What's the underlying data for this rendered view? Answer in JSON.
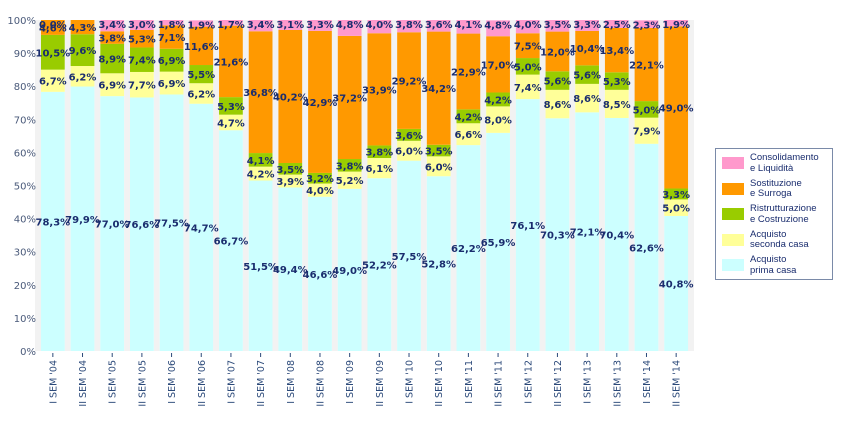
{
  "chart_data": {
    "type": "bar",
    "stacked": true,
    "percent": true,
    "title": "",
    "xlabel": "",
    "ylabel": "",
    "ylim": [
      0,
      100
    ],
    "yticks": [
      "0%",
      "10%",
      "20%",
      "30%",
      "40%",
      "50%",
      "60%",
      "70%",
      "80%",
      "90%",
      "100%"
    ],
    "grid": false,
    "legend_position": "right",
    "categories": [
      "I SEM '04",
      "II SEM '04",
      "I SEM '05",
      "II SEM '05",
      "I SEM '06",
      "II SEM '06",
      "I SEM '07",
      "II SEM '07",
      "I SEM '08",
      "II SEM '08",
      "I SEM '09",
      "II SEM '09",
      "I SEM '10",
      "II SEM '10",
      "I SEM '11",
      "II SEM '11",
      "I SEM '12",
      "II SEM '12",
      "I SEM '13",
      "II SEM '13",
      "I SEM '14",
      "II SEM '14"
    ],
    "series": [
      {
        "name": "Acquisto prima casa",
        "legend_lines": [
          "Acquisto",
          "prima casa"
        ],
        "color": "#ccffff",
        "values": [
          78.3,
          79.9,
          77.0,
          76.6,
          77.5,
          74.7,
          66.7,
          51.5,
          49.4,
          46.6,
          49.0,
          52.2,
          57.5,
          52.8,
          62.2,
          65.9,
          76.1,
          70.3,
          72.1,
          70.4,
          62.6,
          40.8
        ],
        "labels": [
          "78,3%",
          "79,9%",
          "77,0%",
          "76,6%",
          "77,5%",
          "74,7%",
          "66,7%",
          "51,5%",
          "49,4%",
          "46,6%",
          "49,0%",
          "52,2%",
          "57,5%",
          "52,8%",
          "62,2%",
          "65,9%",
          "76,1%",
          "70,3%",
          "72,1%",
          "70,4%",
          "62,6%",
          "40,8%"
        ]
      },
      {
        "name": "Acquisto seconda casa",
        "legend_lines": [
          "Acquisto",
          "seconda casa"
        ],
        "color": "#ffff99",
        "values": [
          6.7,
          6.2,
          6.9,
          7.7,
          6.9,
          6.2,
          4.7,
          4.2,
          3.9,
          4.0,
          5.2,
          6.1,
          6.0,
          6.0,
          6.6,
          8.0,
          7.4,
          8.6,
          8.6,
          8.5,
          7.9,
          5.0
        ],
        "labels": [
          "6,7%",
          "6,2%",
          "6,9%",
          "7,7%",
          "6,9%",
          "6,2%",
          "4,7%",
          "4,2%",
          "3,9%",
          "4,0%",
          "5,2%",
          "6,1%",
          "6,0%",
          "6,0%",
          "6,6%",
          "8,0%",
          "7,4%",
          "8,6%",
          "8,6%",
          "8,5%",
          "7,9%",
          "5,0%"
        ]
      },
      {
        "name": "Ristrutturazione e Costruzione",
        "legend_lines": [
          "Ristrutturazione",
          "e Costruzione"
        ],
        "color": "#99cc00",
        "values": [
          10.5,
          9.6,
          8.9,
          7.4,
          6.9,
          5.5,
          5.3,
          4.1,
          3.5,
          3.2,
          3.8,
          3.8,
          3.6,
          3.5,
          4.2,
          4.2,
          5.0,
          5.6,
          5.6,
          5.3,
          5.0,
          3.3
        ],
        "labels": [
          "10,5%",
          "9,6%",
          "8,9%",
          "7,4%",
          "6,9%",
          "5,5%",
          "5,3%",
          "4,1%",
          "3,5%",
          "3,2%",
          "3,8%",
          "3,8%",
          "3,6%",
          "3,5%",
          "4,2%",
          "4,2%",
          "5,0%",
          "5,6%",
          "5,6%",
          "5,3%",
          "5,0%",
          "3,3%"
        ]
      },
      {
        "name": "Sostituzione e Surroga",
        "legend_lines": [
          "Sostituzione",
          "e Surroga"
        ],
        "color": "#ff9900",
        "values": [
          4.6,
          4.3,
          3.8,
          5.3,
          7.1,
          11.6,
          21.6,
          36.8,
          40.2,
          42.9,
          37.2,
          33.9,
          29.2,
          34.2,
          22.9,
          17.0,
          7.5,
          12.0,
          10.4,
          13.4,
          22.1,
          49.0
        ],
        "labels": [
          "4,6%",
          "4,3%",
          "3,8%",
          "5,3%",
          "7,1%",
          "11,6%",
          "21,6%",
          "36,8%",
          "40,2%",
          "42,9%",
          "37,2%",
          "33,9%",
          "29,2%",
          "34,2%",
          "22,9%",
          "17,0%",
          "7,5%",
          "12,0%",
          "10,4%",
          "13,4%",
          "22,1%",
          "49,0%"
        ]
      },
      {
        "name": "Consolidamento e Liquidità",
        "legend_lines": [
          "Consolidamento",
          "e Liquidità"
        ],
        "color": "#ff99cc",
        "values": [
          0.0,
          0.0,
          3.4,
          3.0,
          1.8,
          1.9,
          1.7,
          3.4,
          3.1,
          3.3,
          4.8,
          4.0,
          3.8,
          3.6,
          4.1,
          4.8,
          4.0,
          3.5,
          3.3,
          2.5,
          2.3,
          1.9
        ],
        "labels": [
          "0,0%",
          "",
          "3,4%",
          "3,0%",
          "1,8%",
          "1,9%",
          "1,7%",
          "3,4%",
          "3,1%",
          "3,3%",
          "4,8%",
          "4,0%",
          "3,8%",
          "3,6%",
          "4,1%",
          "4,8%",
          "4,0%",
          "3,5%",
          "3,3%",
          "2,5%",
          "2,3%",
          "1,9%"
        ]
      }
    ],
    "legend_order": [
      4,
      3,
      2,
      1,
      0
    ]
  }
}
